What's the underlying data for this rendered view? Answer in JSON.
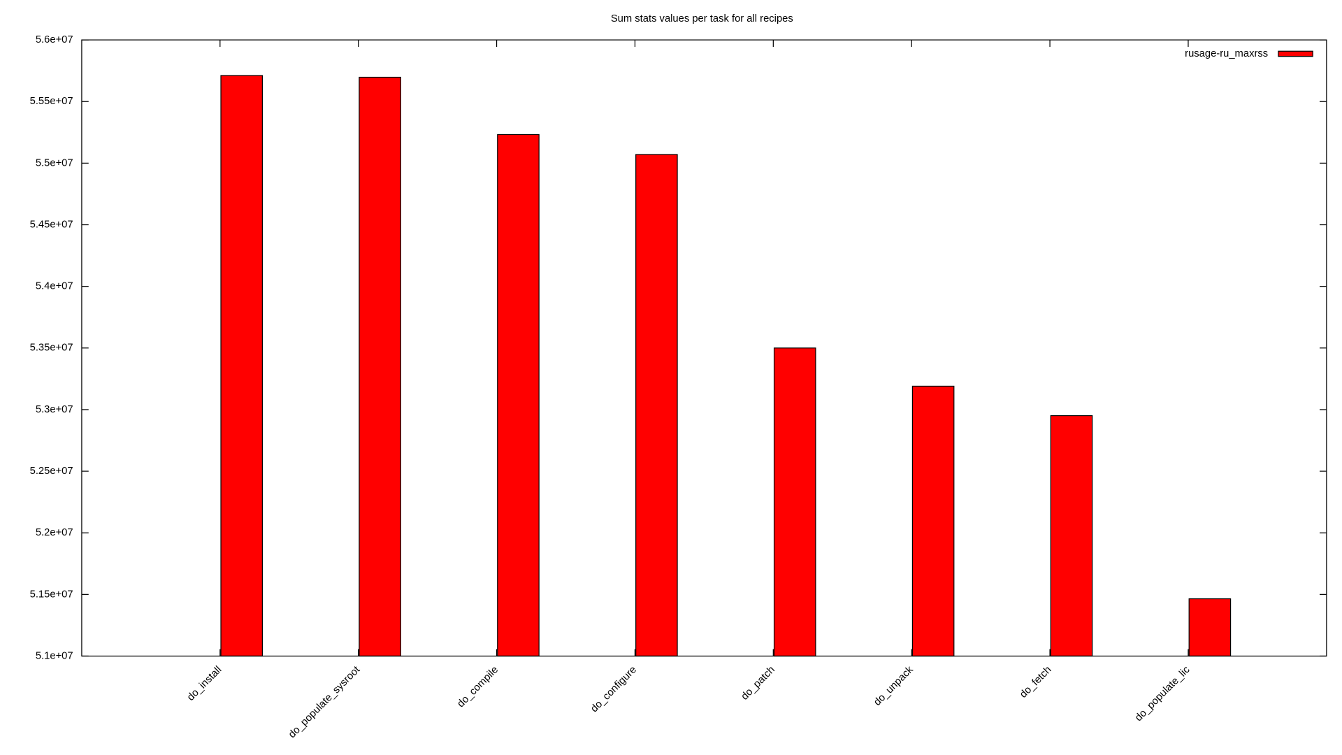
{
  "chart_data": {
    "type": "bar",
    "title": "Sum stats values per task for all recipes",
    "categories": [
      "do_install",
      "do_populate_sysroot",
      "do_compile",
      "do_configure",
      "do_patch",
      "do_unpack",
      "do_fetch",
      "do_populate_lic"
    ],
    "series": [
      {
        "name": "rusage-ru_maxrss",
        "color": "#ff0000",
        "values": [
          55711000,
          55697000,
          55232000,
          55070000,
          53500000,
          53190000,
          52951000,
          51465000
        ]
      }
    ],
    "ylim": [
      51000000,
      56000000
    ],
    "yticks": [
      {
        "value": 51000000,
        "label": "5.1e+07"
      },
      {
        "value": 51500000,
        "label": "5.15e+07"
      },
      {
        "value": 52000000,
        "label": "5.2e+07"
      },
      {
        "value": 52500000,
        "label": "5.25e+07"
      },
      {
        "value": 53000000,
        "label": "5.3e+07"
      },
      {
        "value": 53500000,
        "label": "5.35e+07"
      },
      {
        "value": 54000000,
        "label": "5.4e+07"
      },
      {
        "value": 54500000,
        "label": "5.45e+07"
      },
      {
        "value": 55000000,
        "label": "5.5e+07"
      },
      {
        "value": 55500000,
        "label": "5.55e+07"
      },
      {
        "value": 56000000,
        "label": "5.6e+07"
      }
    ],
    "grid": false,
    "legend": "top-right"
  }
}
